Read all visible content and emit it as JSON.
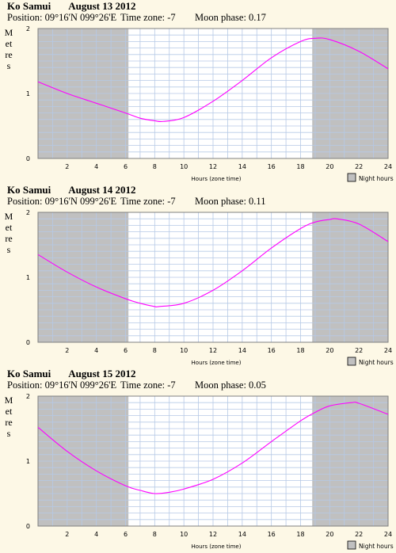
{
  "chart_data": [
    {
      "type": "line",
      "location": "Ko Samui",
      "date": "August 13 2012",
      "position_label": "Position: 09°16'N 099°26'E",
      "timezone_label": "Time zone: -7",
      "moon_label": "Moon phase: 0.17",
      "ylabel": "Metres",
      "xlabel": "Hours (zone time)",
      "legend": "Night hours",
      "xlim": [
        0,
        24
      ],
      "ylim": [
        0,
        2
      ],
      "x_ticks": [
        "2",
        "4",
        "6",
        "8",
        "10",
        "12",
        "14",
        "16",
        "18",
        "20",
        "22",
        "24"
      ],
      "y_ticks": [
        "0",
        "1",
        "2"
      ],
      "night_shading": [
        [
          0,
          6.2
        ],
        [
          18.8,
          24
        ]
      ],
      "line_color": "#ff00ff",
      "series": [
        {
          "x": [
            0,
            2,
            4,
            6,
            7,
            8,
            8.6,
            10,
            12,
            14,
            16,
            18,
            19,
            20,
            22,
            24
          ],
          "y": [
            1.18,
            1.0,
            0.85,
            0.7,
            0.62,
            0.58,
            0.57,
            0.63,
            0.88,
            1.2,
            1.55,
            1.8,
            1.85,
            1.83,
            1.65,
            1.38
          ]
        }
      ]
    },
    {
      "type": "line",
      "location": "Ko Samui",
      "date": "August 14 2012",
      "position_label": "Position: 09°16'N 099°26'E",
      "timezone_label": "Time zone: -7",
      "moon_label": "Moon phase: 0.11",
      "ylabel": "Metres",
      "xlabel": "Hours (zone time)",
      "legend": "Night hours",
      "xlim": [
        0,
        24
      ],
      "ylim": [
        0,
        2
      ],
      "x_ticks": [
        "2",
        "4",
        "6",
        "8",
        "10",
        "12",
        "14",
        "16",
        "18",
        "20",
        "22",
        "24"
      ],
      "y_ticks": [
        "0",
        "1",
        "2"
      ],
      "night_shading": [
        [
          0,
          6.2
        ],
        [
          18.8,
          24
        ]
      ],
      "line_color": "#ff00ff",
      "series": [
        {
          "x": [
            0,
            2,
            4,
            6,
            7,
            8,
            8.3,
            10,
            12,
            14,
            16,
            18,
            19,
            20,
            20.5,
            22,
            24
          ],
          "y": [
            1.35,
            1.08,
            0.85,
            0.67,
            0.6,
            0.55,
            0.55,
            0.6,
            0.8,
            1.1,
            1.45,
            1.75,
            1.85,
            1.89,
            1.9,
            1.82,
            1.55
          ]
        }
      ]
    },
    {
      "type": "line",
      "location": "Ko Samui",
      "date": "August 15 2012",
      "position_label": "Position: 09°16'N 099°26'E",
      "timezone_label": "Time zone: -7",
      "moon_label": "Moon phase: 0.05",
      "ylabel": "Metres",
      "xlabel": "Hours (zone time)",
      "legend": "Night hours",
      "xlim": [
        0,
        24
      ],
      "ylim": [
        0,
        2
      ],
      "x_ticks": [
        "2",
        "4",
        "6",
        "8",
        "10",
        "12",
        "14",
        "16",
        "18",
        "20",
        "22",
        "24"
      ],
      "y_ticks": [
        "0",
        "1",
        "2"
      ],
      "night_shading": [
        [
          0,
          6.2
        ],
        [
          18.8,
          24
        ]
      ],
      "line_color": "#ff00ff",
      "series": [
        {
          "x": [
            0,
            2,
            4,
            6,
            7,
            8,
            9,
            10,
            12,
            14,
            16,
            18,
            19,
            20,
            21.5,
            22,
            24
          ],
          "y": [
            1.52,
            1.15,
            0.85,
            0.62,
            0.55,
            0.5,
            0.52,
            0.57,
            0.72,
            0.97,
            1.3,
            1.62,
            1.75,
            1.85,
            1.9,
            1.89,
            1.72
          ]
        }
      ]
    }
  ]
}
